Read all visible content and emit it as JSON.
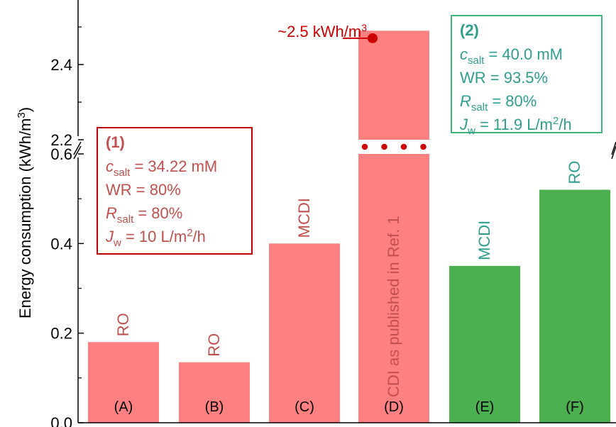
{
  "chart_data": {
    "type": "bar",
    "ylabel": "Energy consumption (kWh/m",
    "ylabel_sup": "3",
    "ylabel_tail": ")",
    "y_broken_axis": true,
    "lower_ylim": [
      0.0,
      0.6
    ],
    "upper_ylim": [
      2.2,
      2.5
    ],
    "lower_ticks": [
      "0.0",
      "0.2",
      "0.4",
      "0.6"
    ],
    "upper_ticks": [
      "2.2",
      "2.4"
    ],
    "categories": [
      "(A)",
      "(B)",
      "(C)",
      "(D)",
      "(E)",
      "(F)"
    ],
    "values": [
      0.18,
      0.135,
      0.4,
      2.49,
      0.35,
      0.52
    ],
    "bar_labels": [
      "RO",
      "RO",
      "MCDI",
      "CDI as published in Ref. 1",
      "MCDI",
      "RO"
    ],
    "group": [
      1,
      1,
      1,
      1,
      2,
      2
    ],
    "colors": {
      "group1": "#ff8080",
      "group2": "#4caf50",
      "text1": "#c0504d",
      "text2": "#2e9e8e",
      "box1": "#c00000",
      "box2": "#3cb878",
      "marker": "#cc0000",
      "break": "#ffffff"
    },
    "annotation": {
      "text": "~2.5 kWh/m",
      "sup": "3",
      "category": "(D)",
      "value": 2.47
    },
    "box1": {
      "title": "(1)",
      "lines": [
        {
          "sym": "c",
          "sub": "salt",
          "rest": " = 34.22 mM"
        },
        {
          "sym": "",
          "sub": "",
          "rest": "WR = 80%"
        },
        {
          "sym": "R",
          "sub": "salt",
          "rest": " = 80%"
        },
        {
          "sym": "J",
          "sub": "w",
          "rest": " = 10 L/m",
          "sup": "2",
          "tail": "/h"
        }
      ]
    },
    "box2": {
      "title": "(2)",
      "lines": [
        {
          "sym": "c",
          "sub": "salt",
          "rest": " = 40.0 mM"
        },
        {
          "sym": "",
          "sub": "",
          "rest": "WR = 93.5%"
        },
        {
          "sym": "R",
          "sub": "salt",
          "rest": " = 80%"
        },
        {
          "sym": "J",
          "sub": "w",
          "rest": " = 11.9 L/m",
          "sup": "2",
          "tail": "/h"
        }
      ]
    }
  }
}
